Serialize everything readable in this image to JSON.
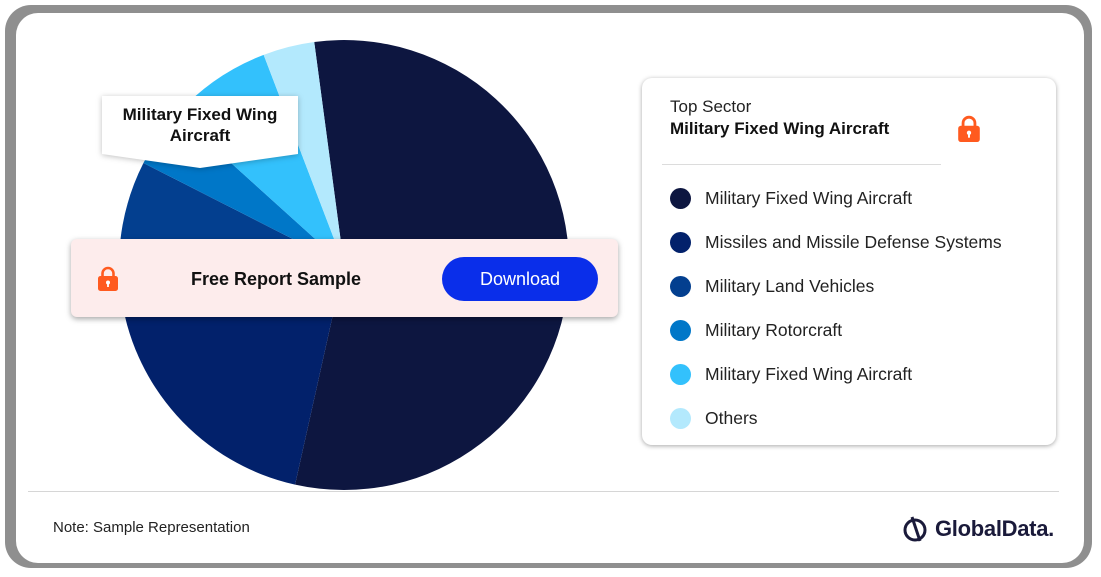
{
  "chart_data": {
    "type": "pie",
    "categories": [
      "Military Fixed Wing Aircraft",
      "Missiles and Missile Defense Systems",
      "Military Land Vehicles",
      "Military Rotorcraft",
      "Military Fixed Wing Aircraft",
      "Others"
    ],
    "values": [
      55.6,
      19.7,
      9.3,
      4.2,
      7.5,
      3.7
    ],
    "colors": [
      "#0d1640",
      "#02216b",
      "#033f8f",
      "#0077c8",
      "#33c1fc",
      "#b3e9fd"
    ],
    "start_angle_deg": -7.6,
    "title": "",
    "callout": "Military Fixed Wing Aircraft"
  },
  "top_sector": {
    "label": "Top Sector",
    "value": "Military Fixed Wing Aircraft"
  },
  "banner": {
    "text": "Free Report Sample",
    "button": "Download"
  },
  "note": "Note: Sample Representation",
  "logo": "GlobalData.",
  "icons": {
    "lock": "lock-icon",
    "logo": "globaldata-logo-icon"
  },
  "accent_color": "#ff5a1f"
}
